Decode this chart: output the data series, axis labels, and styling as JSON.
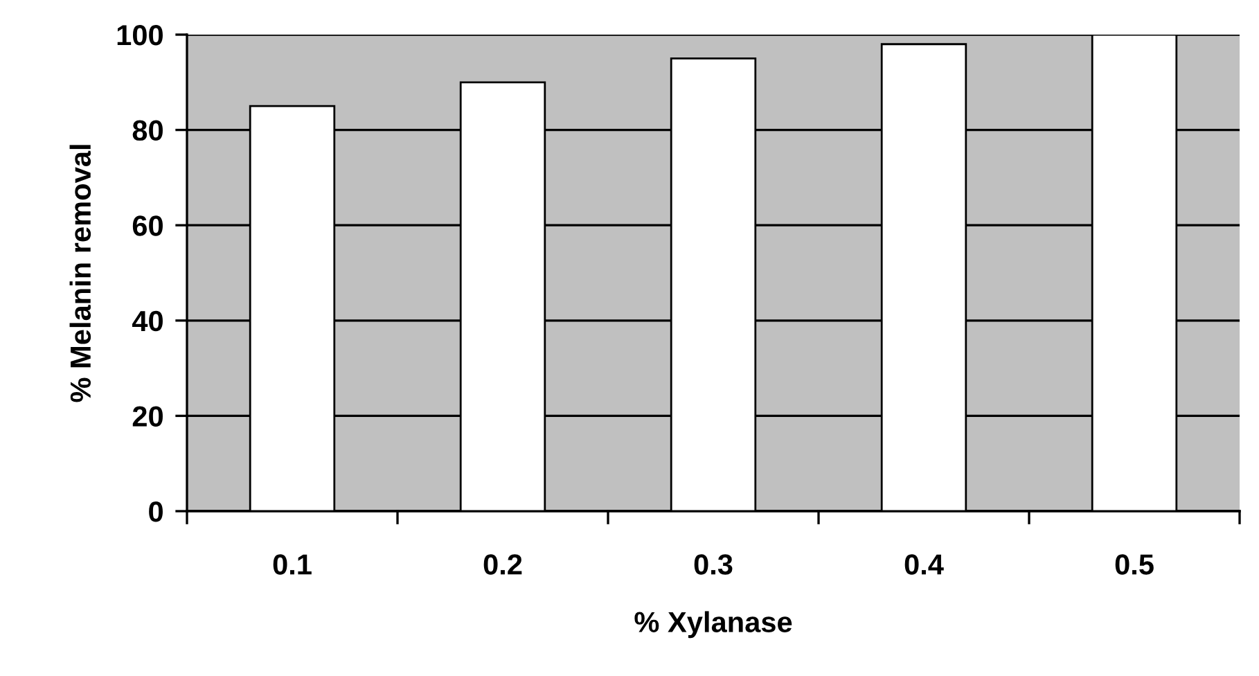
{
  "chart_data": {
    "type": "bar",
    "xlabel": "% Xylanase",
    "ylabel": "% Melanin removal",
    "categories": [
      "0.1",
      "0.2",
      "0.3",
      "0.4",
      "0.5"
    ],
    "values": [
      85,
      90,
      95,
      98,
      100
    ],
    "color": "#ffffff",
    "ylim": [
      0,
      100
    ],
    "yticks": [
      0,
      20,
      40,
      60,
      80,
      100
    ],
    "grid": "y"
  }
}
